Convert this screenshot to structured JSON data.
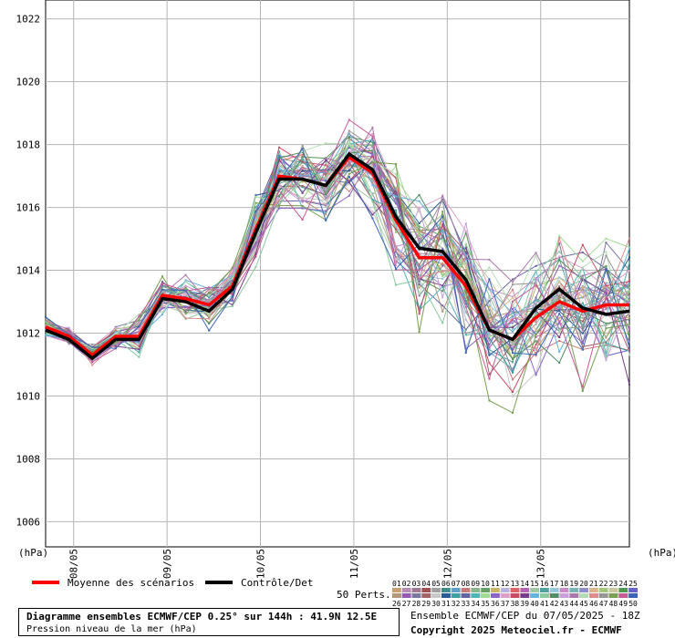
{
  "chart_data": {
    "type": "line",
    "yunit_left": "(hPa)",
    "yunit_right": "(hPa)",
    "y_ticks": [
      1006,
      1008,
      1010,
      1012,
      1014,
      1016,
      1018,
      1020,
      1022
    ],
    "ylim": [
      1005.2,
      1022.6
    ],
    "x": [
      0,
      1,
      2,
      3,
      4,
      5,
      6,
      7,
      8,
      9,
      10,
      11,
      12,
      13,
      14,
      15,
      16,
      17,
      18,
      19,
      20,
      21,
      22,
      23,
      24,
      25
    ],
    "x_tick_labels": [
      {
        "label": "08/05",
        "x": 1.2
      },
      {
        "label": "09/05",
        "x": 5.2
      },
      {
        "label": "10/05",
        "x": 9.2
      },
      {
        "label": "11/05",
        "x": 13.2
      },
      {
        "label": "12/05",
        "x": 17.2
      },
      {
        "label": "13/05",
        "x": 21.2
      }
    ],
    "grid": true,
    "series": [
      {
        "name": "Moyenne des scénarios",
        "color": "#ff0000",
        "values": [
          1012.2,
          1011.9,
          1011.3,
          1011.9,
          1011.9,
          1013.2,
          1013.1,
          1012.9,
          1013.5,
          1015.3,
          1017.0,
          1016.9,
          1016.7,
          1017.6,
          1017.1,
          1015.6,
          1014.4,
          1014.4,
          1013.5,
          1012.1,
          1011.8,
          1012.5,
          1013.0,
          1012.7,
          1012.9,
          1012.9
        ]
      },
      {
        "name": "Contrôle/Det",
        "color": "#000000",
        "values": [
          1012.1,
          1011.8,
          1011.2,
          1011.8,
          1011.8,
          1013.1,
          1013.0,
          1012.7,
          1013.4,
          1015.2,
          1016.9,
          1016.9,
          1016.7,
          1017.7,
          1017.2,
          1015.7,
          1014.7,
          1014.6,
          1013.7,
          1012.1,
          1011.8,
          1012.8,
          1013.4,
          1012.8,
          1012.6,
          1012.7
        ]
      }
    ],
    "perturbations_count": 50
  },
  "legend": {
    "mean_label": "Moyenne des scénarios",
    "control_label": "Contrôle/Det",
    "perts_label": "50 Perts.",
    "row1": [
      "01",
      "02",
      "03",
      "04",
      "05",
      "06",
      "07",
      "08",
      "09",
      "10",
      "11",
      "12",
      "13",
      "14",
      "15",
      "16",
      "17",
      "18",
      "19",
      "20",
      "21",
      "22",
      "23",
      "24",
      "25"
    ],
    "row2": [
      "26",
      "27",
      "28",
      "29",
      "30",
      "31",
      "32",
      "33",
      "34",
      "35",
      "36",
      "37",
      "38",
      "39",
      "40",
      "41",
      "42",
      "43",
      "44",
      "45",
      "46",
      "47",
      "48",
      "49",
      "50"
    ],
    "colors": [
      "#c8a070",
      "#b48cb4",
      "#a07896",
      "#a05050",
      "#a0a0a0",
      "#3c8c8c",
      "#60a0c8",
      "#c87878",
      "#8cb48c",
      "#64a064",
      "#c8b464",
      "#b4b4dc",
      "#dc6464",
      "#b464b4",
      "#a0c8a0",
      "#50a0a0",
      "#96c8dc",
      "#c88cc8",
      "#78b4b4",
      "#8c8cc8",
      "#dcb48c",
      "#a0c878",
      "#c8c8a0",
      "#509650",
      "#6464c8"
    ],
    "colors2": [
      "#b49678",
      "#965ab4",
      "#7878a0",
      "#a06464",
      "#c8c8c8",
      "#285a96",
      "#3ca0a0",
      "#6464a0",
      "#50b4b4",
      "#a0dc96",
      "#8c64c8",
      "#dca0c8",
      "#c84c64",
      "#783c8c",
      "#64b4dc",
      "#8cc8a0",
      "#508c64",
      "#c8a0dc",
      "#aa78aa",
      "#b4dcb4",
      "#dc8c8c",
      "#969696",
      "#78a050",
      "#c85a96",
      "#3c64b4"
    ]
  },
  "info": {
    "title": "Diagramme ensembles ECMWF/CEP 0.25° sur 144h : 41.9N 12.5E",
    "subtitle": "Pression niveau de la mer (hPa)",
    "run": "Ensemble ECMWF/CEP du 07/05/2025 - 18Z",
    "copyright": "Copyright 2025 Meteociel.fr - ECMWF"
  }
}
